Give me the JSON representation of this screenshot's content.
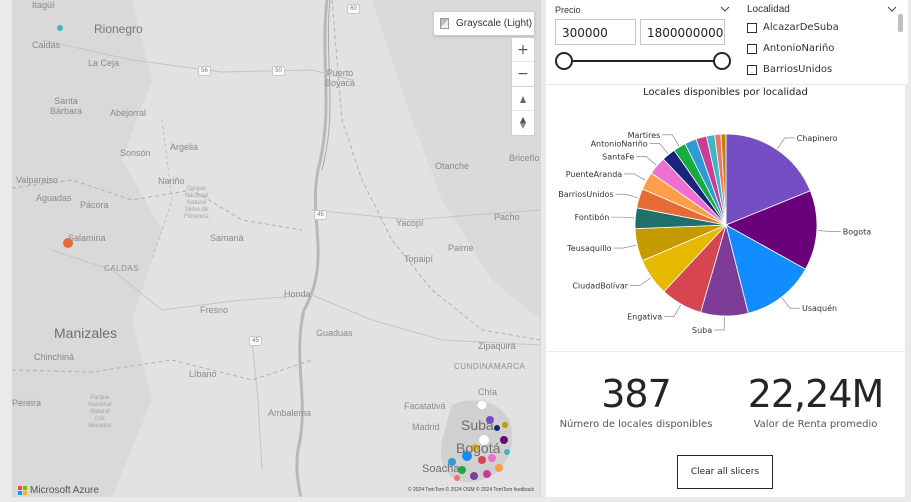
{
  "map": {
    "style_picker_label": "Grayscale (Light)",
    "zoom_in_label": "+",
    "zoom_out_label": "−",
    "logo_text": "Microsoft Azure",
    "attribution": "© 2024 TomTom © 2024 OSM © 2024 TomTom feedback",
    "labels": {
      "itagui": "Itagüí",
      "caldas_town": "Caldas",
      "rionegro": "Rionegro",
      "la_ceja": "La Ceja",
      "abejorral": "Abejorral",
      "puerto_boyaca": "Puerto\nBoyacá",
      "santa_barbara": "Santa\nBárbara",
      "sonson": "Sonsón",
      "argelia": "Argelia",
      "narino": "Nariño",
      "otanche": "Otanche",
      "briceno": "Briceño",
      "valparaiso": "Valparaiso",
      "aguadas": "Aguadas",
      "pacora": "Pácora",
      "parque_selva": "Parque\nNacional\nNatural\nSelva de\nFlorencia",
      "samana": "Samaná",
      "yacopi": "Yacopí",
      "salamina": "Salamina",
      "caldas_region": "CALDAS",
      "pacho": "Pacho",
      "paime": "Paime",
      "topaipi": "Topaipí",
      "honda": "Honda",
      "fresno": "Fresno",
      "manizales": "Manizales",
      "guaduas": "Guaduas",
      "zipaquira": "Zipaquirá",
      "chinchina": "Chinchiná",
      "libano": "Líbano",
      "cundinamarca_region": "CUNDINAMARCA",
      "pereira": "Pereira",
      "parque_nevados": "Parque\nNacional\nNatural\nLos\nNevados",
      "ambalema": "Ambalema",
      "facatativa": "Facatativá",
      "chia": "Chía",
      "suba": "Suba",
      "madrid": "Madrid",
      "bogota": "Bogotá",
      "soacha": "Soacha",
      "road_60": "60",
      "road_56": "56",
      "road_45": "45",
      "road_50": "50",
      "road_45b": "45"
    }
  },
  "precio_slicer": {
    "title": "Precio",
    "min_value": "300000",
    "max_value": "1800000000",
    "range_fraction": [
      0,
      1
    ]
  },
  "localidad_slicer": {
    "title": "Localidad",
    "items": [
      "AlcazarDeSuba",
      "AntonioNariño",
      "BarriosUnidos"
    ]
  },
  "chart_data": {
    "type": "pie",
    "title": "Locales disponibles por localidad",
    "slices": [
      {
        "label": "Chapinero",
        "value": 17.0,
        "color": "#744EC2"
      },
      {
        "label": "Bogota",
        "value": 12.8,
        "color": "#6B007B"
      },
      {
        "label": "Usaquén",
        "value": 11.7,
        "color": "#118DFF"
      },
      {
        "label": "Suba",
        "value": 7.6,
        "color": "#7D3C98"
      },
      {
        "label": "Engativa",
        "value": 6.7,
        "color": "#D64550"
      },
      {
        "label": "CiudadBolívar",
        "value": 6.0,
        "color": "#E6B800"
      },
      {
        "label": "Teusaquillo",
        "value": 5.2,
        "color": "#C49A00"
      },
      {
        "label": "Fontibón",
        "value": 3.3,
        "color": "#1F6F6B"
      },
      {
        "label": "BarriosUnidos",
        "value": 3.1,
        "color": "#E66C37"
      },
      {
        "label": "PuenteAranda",
        "value": 2.9,
        "color": "#FF9E4A"
      },
      {
        "label": "SantaFe",
        "value": 2.9,
        "color": "#EE6FCF"
      },
      {
        "label": "AntonioNariño",
        "value": 2.2,
        "color": "#1A237E"
      },
      {
        "label": "Martires",
        "value": 2.0,
        "color": "#1AAB40"
      },
      {
        "label": "",
        "value": 1.9,
        "color": "#2F9BD6"
      },
      {
        "label": "",
        "value": 1.7,
        "color": "#C83D95"
      },
      {
        "label": "",
        "value": 1.3,
        "color": "#3DB7C4"
      },
      {
        "label": "",
        "value": 1.0,
        "color": "#F1736A"
      },
      {
        "label": "",
        "value": 0.8,
        "color": "#B8860B"
      }
    ]
  },
  "kpis": [
    {
      "value": "387",
      "label": "Número de locales disponibles"
    },
    {
      "value": "22,24M",
      "label": "Valor de Renta promedio"
    }
  ],
  "clear_button_label": "Clear all slicers"
}
